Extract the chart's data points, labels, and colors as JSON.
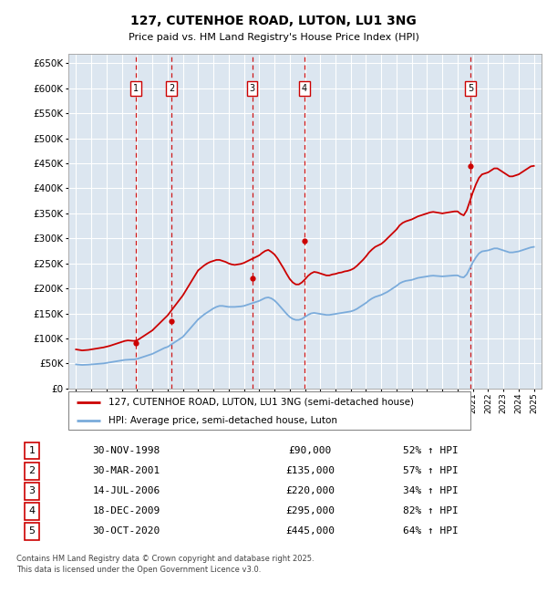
{
  "title": "127, CUTENHOE ROAD, LUTON, LU1 3NG",
  "subtitle": "Price paid vs. HM Land Registry's House Price Index (HPI)",
  "background_color": "#ffffff",
  "plot_bg_color": "#dce6f0",
  "grid_color": "#ffffff",
  "ylim": [
    0,
    670000
  ],
  "xlim_start": 1994.5,
  "xlim_end": 2025.5,
  "xtick_years": [
    1995,
    1996,
    1997,
    1998,
    1999,
    2000,
    2001,
    2002,
    2003,
    2004,
    2005,
    2006,
    2007,
    2008,
    2009,
    2010,
    2011,
    2012,
    2013,
    2014,
    2015,
    2016,
    2017,
    2018,
    2019,
    2020,
    2021,
    2022,
    2023,
    2024,
    2025
  ],
  "hpi_color": "#7aabdb",
  "price_color": "#cc0000",
  "sale_marker_color": "#cc0000",
  "vline_color": "#cc0000",
  "sale_points": [
    {
      "num": 1,
      "year": 1998.917,
      "price": 90000
    },
    {
      "num": 2,
      "year": 2001.25,
      "price": 135000
    },
    {
      "num": 3,
      "year": 2006.54,
      "price": 220000
    },
    {
      "num": 4,
      "year": 2009.96,
      "price": 295000
    },
    {
      "num": 5,
      "year": 2020.83,
      "price": 445000
    }
  ],
  "table_entries": [
    {
      "num": 1,
      "date": "30-NOV-1998",
      "price": "£90,000",
      "hpi": "52% ↑ HPI"
    },
    {
      "num": 2,
      "date": "30-MAR-2001",
      "price": "£135,000",
      "hpi": "57% ↑ HPI"
    },
    {
      "num": 3,
      "date": "14-JUL-2006",
      "price": "£220,000",
      "hpi": "34% ↑ HPI"
    },
    {
      "num": 4,
      "date": "18-DEC-2009",
      "price": "£295,000",
      "hpi": "82% ↑ HPI"
    },
    {
      "num": 5,
      "date": "30-OCT-2020",
      "price": "£445,000",
      "hpi": "64% ↑ HPI"
    }
  ],
  "legend_property_label": "127, CUTENHOE ROAD, LUTON, LU1 3NG (semi-detached house)",
  "legend_hpi_label": "HPI: Average price, semi-detached house, Luton",
  "footer": "Contains HM Land Registry data © Crown copyright and database right 2025.\nThis data is licensed under the Open Government Licence v3.0.",
  "hpi_data": [
    [
      1995.0,
      48000
    ],
    [
      1995.2,
      47500
    ],
    [
      1995.4,
      47000
    ],
    [
      1995.6,
      47200
    ],
    [
      1995.8,
      47500
    ],
    [
      1996.0,
      48000
    ],
    [
      1996.2,
      48500
    ],
    [
      1996.4,
      49000
    ],
    [
      1996.6,
      49500
    ],
    [
      1996.8,
      50000
    ],
    [
      1997.0,
      51000
    ],
    [
      1997.2,
      52000
    ],
    [
      1997.4,
      53000
    ],
    [
      1997.6,
      54000
    ],
    [
      1997.8,
      55000
    ],
    [
      1998.0,
      56000
    ],
    [
      1998.2,
      57000
    ],
    [
      1998.4,
      57500
    ],
    [
      1998.6,
      57800
    ],
    [
      1998.8,
      58000
    ],
    [
      1999.0,
      59000
    ],
    [
      1999.2,
      61000
    ],
    [
      1999.4,
      63000
    ],
    [
      1999.6,
      65000
    ],
    [
      1999.8,
      67000
    ],
    [
      2000.0,
      69000
    ],
    [
      2000.2,
      72000
    ],
    [
      2000.4,
      75000
    ],
    [
      2000.6,
      78000
    ],
    [
      2000.8,
      81000
    ],
    [
      2001.0,
      83000
    ],
    [
      2001.2,
      87000
    ],
    [
      2001.4,
      91000
    ],
    [
      2001.6,
      95000
    ],
    [
      2001.8,
      99000
    ],
    [
      2002.0,
      103000
    ],
    [
      2002.2,
      110000
    ],
    [
      2002.4,
      117000
    ],
    [
      2002.6,
      124000
    ],
    [
      2002.8,
      131000
    ],
    [
      2003.0,
      138000
    ],
    [
      2003.2,
      143000
    ],
    [
      2003.4,
      148000
    ],
    [
      2003.6,
      152000
    ],
    [
      2003.8,
      156000
    ],
    [
      2004.0,
      160000
    ],
    [
      2004.2,
      163000
    ],
    [
      2004.4,
      165000
    ],
    [
      2004.6,
      165000
    ],
    [
      2004.8,
      164000
    ],
    [
      2005.0,
      163000
    ],
    [
      2005.2,
      163000
    ],
    [
      2005.4,
      163000
    ],
    [
      2005.6,
      163500
    ],
    [
      2005.8,
      164000
    ],
    [
      2006.0,
      165000
    ],
    [
      2006.2,
      167000
    ],
    [
      2006.4,
      169000
    ],
    [
      2006.6,
      171000
    ],
    [
      2006.8,
      173000
    ],
    [
      2007.0,
      175000
    ],
    [
      2007.2,
      178000
    ],
    [
      2007.4,
      181000
    ],
    [
      2007.6,
      182000
    ],
    [
      2007.8,
      180000
    ],
    [
      2008.0,
      176000
    ],
    [
      2008.2,
      170000
    ],
    [
      2008.4,
      163000
    ],
    [
      2008.6,
      156000
    ],
    [
      2008.8,
      149000
    ],
    [
      2009.0,
      143000
    ],
    [
      2009.2,
      139000
    ],
    [
      2009.4,
      137000
    ],
    [
      2009.6,
      137000
    ],
    [
      2009.8,
      139000
    ],
    [
      2010.0,
      143000
    ],
    [
      2010.2,
      147000
    ],
    [
      2010.4,
      150000
    ],
    [
      2010.6,
      151000
    ],
    [
      2010.8,
      150000
    ],
    [
      2011.0,
      149000
    ],
    [
      2011.2,
      148000
    ],
    [
      2011.4,
      147000
    ],
    [
      2011.6,
      147000
    ],
    [
      2011.8,
      148000
    ],
    [
      2012.0,
      149000
    ],
    [
      2012.2,
      150000
    ],
    [
      2012.4,
      151000
    ],
    [
      2012.6,
      152000
    ],
    [
      2012.8,
      153000
    ],
    [
      2013.0,
      154000
    ],
    [
      2013.2,
      156000
    ],
    [
      2013.4,
      159000
    ],
    [
      2013.6,
      163000
    ],
    [
      2013.8,
      167000
    ],
    [
      2014.0,
      171000
    ],
    [
      2014.2,
      176000
    ],
    [
      2014.4,
      180000
    ],
    [
      2014.6,
      183000
    ],
    [
      2014.8,
      185000
    ],
    [
      2015.0,
      187000
    ],
    [
      2015.2,
      190000
    ],
    [
      2015.4,
      193000
    ],
    [
      2015.6,
      197000
    ],
    [
      2015.8,
      201000
    ],
    [
      2016.0,
      205000
    ],
    [
      2016.2,
      210000
    ],
    [
      2016.4,
      213000
    ],
    [
      2016.6,
      215000
    ],
    [
      2016.8,
      216000
    ],
    [
      2017.0,
      217000
    ],
    [
      2017.2,
      219000
    ],
    [
      2017.4,
      221000
    ],
    [
      2017.6,
      222000
    ],
    [
      2017.8,
      223000
    ],
    [
      2018.0,
      224000
    ],
    [
      2018.2,
      225000
    ],
    [
      2018.4,
      225500
    ],
    [
      2018.6,
      225000
    ],
    [
      2018.8,
      224500
    ],
    [
      2019.0,
      224000
    ],
    [
      2019.2,
      224500
    ],
    [
      2019.4,
      225000
    ],
    [
      2019.6,
      225500
    ],
    [
      2019.8,
      226000
    ],
    [
      2020.0,
      226000
    ],
    [
      2020.2,
      223000
    ],
    [
      2020.4,
      222000
    ],
    [
      2020.6,
      228000
    ],
    [
      2020.8,
      240000
    ],
    [
      2021.0,
      252000
    ],
    [
      2021.2,
      262000
    ],
    [
      2021.4,
      270000
    ],
    [
      2021.6,
      274000
    ],
    [
      2021.8,
      275000
    ],
    [
      2022.0,
      276000
    ],
    [
      2022.2,
      278000
    ],
    [
      2022.4,
      280000
    ],
    [
      2022.6,
      280000
    ],
    [
      2022.8,
      278000
    ],
    [
      2023.0,
      276000
    ],
    [
      2023.2,
      274000
    ],
    [
      2023.4,
      272000
    ],
    [
      2023.6,
      272000
    ],
    [
      2023.8,
      273000
    ],
    [
      2024.0,
      274000
    ],
    [
      2024.2,
      276000
    ],
    [
      2024.4,
      278000
    ],
    [
      2024.6,
      280000
    ],
    [
      2024.8,
      282000
    ],
    [
      2025.0,
      283000
    ]
  ],
  "property_hpi_data": [
    [
      1995.0,
      78000
    ],
    [
      1995.2,
      77000
    ],
    [
      1995.4,
      76000
    ],
    [
      1995.6,
      76500
    ],
    [
      1995.8,
      77000
    ],
    [
      1996.0,
      78000
    ],
    [
      1996.2,
      79000
    ],
    [
      1996.4,
      80000
    ],
    [
      1996.6,
      81000
    ],
    [
      1996.8,
      82000
    ],
    [
      1997.0,
      83500
    ],
    [
      1997.2,
      85000
    ],
    [
      1997.4,
      87000
    ],
    [
      1997.6,
      89000
    ],
    [
      1997.8,
      91000
    ],
    [
      1998.0,
      93000
    ],
    [
      1998.2,
      95000
    ],
    [
      1998.4,
      96000
    ],
    [
      1998.6,
      95500
    ],
    [
      1998.8,
      95000
    ],
    [
      1999.0,
      96000
    ],
    [
      1999.2,
      100000
    ],
    [
      1999.4,
      104000
    ],
    [
      1999.6,
      108000
    ],
    [
      1999.8,
      112000
    ],
    [
      2000.0,
      116000
    ],
    [
      2000.2,
      122000
    ],
    [
      2000.4,
      128000
    ],
    [
      2000.6,
      134000
    ],
    [
      2000.8,
      140000
    ],
    [
      2001.0,
      146000
    ],
    [
      2001.2,
      154000
    ],
    [
      2001.4,
      162000
    ],
    [
      2001.6,
      170000
    ],
    [
      2001.8,
      178000
    ],
    [
      2002.0,
      186000
    ],
    [
      2002.2,
      196000
    ],
    [
      2002.4,
      206000
    ],
    [
      2002.6,
      216000
    ],
    [
      2002.8,
      226000
    ],
    [
      2003.0,
      236000
    ],
    [
      2003.2,
      241000
    ],
    [
      2003.4,
      246000
    ],
    [
      2003.6,
      250000
    ],
    [
      2003.8,
      253000
    ],
    [
      2004.0,
      255000
    ],
    [
      2004.2,
      257000
    ],
    [
      2004.4,
      257000
    ],
    [
      2004.6,
      255000
    ],
    [
      2004.8,
      253000
    ],
    [
      2005.0,
      250000
    ],
    [
      2005.2,
      248000
    ],
    [
      2005.4,
      247000
    ],
    [
      2005.6,
      248000
    ],
    [
      2005.8,
      249000
    ],
    [
      2006.0,
      251000
    ],
    [
      2006.2,
      254000
    ],
    [
      2006.4,
      257000
    ],
    [
      2006.6,
      260000
    ],
    [
      2006.8,
      263000
    ],
    [
      2007.0,
      266000
    ],
    [
      2007.2,
      271000
    ],
    [
      2007.4,
      275000
    ],
    [
      2007.6,
      277000
    ],
    [
      2007.8,
      273000
    ],
    [
      2008.0,
      268000
    ],
    [
      2008.2,
      260000
    ],
    [
      2008.4,
      250000
    ],
    [
      2008.6,
      240000
    ],
    [
      2008.8,
      229000
    ],
    [
      2009.0,
      219000
    ],
    [
      2009.2,
      212000
    ],
    [
      2009.4,
      208000
    ],
    [
      2009.6,
      208000
    ],
    [
      2009.8,
      212000
    ],
    [
      2010.0,
      218000
    ],
    [
      2010.2,
      225000
    ],
    [
      2010.4,
      230000
    ],
    [
      2010.6,
      233000
    ],
    [
      2010.8,
      232000
    ],
    [
      2011.0,
      230000
    ],
    [
      2011.2,
      228000
    ],
    [
      2011.4,
      226000
    ],
    [
      2011.6,
      226000
    ],
    [
      2011.8,
      228000
    ],
    [
      2012.0,
      229000
    ],
    [
      2012.2,
      231000
    ],
    [
      2012.4,
      232000
    ],
    [
      2012.6,
      234000
    ],
    [
      2012.8,
      235000
    ],
    [
      2013.0,
      237000
    ],
    [
      2013.2,
      240000
    ],
    [
      2013.4,
      245000
    ],
    [
      2013.6,
      251000
    ],
    [
      2013.8,
      257000
    ],
    [
      2014.0,
      264000
    ],
    [
      2014.2,
      272000
    ],
    [
      2014.4,
      278000
    ],
    [
      2014.6,
      283000
    ],
    [
      2014.8,
      286000
    ],
    [
      2015.0,
      289000
    ],
    [
      2015.2,
      294000
    ],
    [
      2015.4,
      300000
    ],
    [
      2015.6,
      306000
    ],
    [
      2015.8,
      312000
    ],
    [
      2016.0,
      318000
    ],
    [
      2016.2,
      326000
    ],
    [
      2016.4,
      331000
    ],
    [
      2016.6,
      334000
    ],
    [
      2016.8,
      336000
    ],
    [
      2017.0,
      338000
    ],
    [
      2017.2,
      341000
    ],
    [
      2017.4,
      344000
    ],
    [
      2017.6,
      346000
    ],
    [
      2017.8,
      348000
    ],
    [
      2018.0,
      350000
    ],
    [
      2018.2,
      352000
    ],
    [
      2018.4,
      353000
    ],
    [
      2018.6,
      352000
    ],
    [
      2018.8,
      351000
    ],
    [
      2019.0,
      350000
    ],
    [
      2019.2,
      351000
    ],
    [
      2019.4,
      352000
    ],
    [
      2019.6,
      353000
    ],
    [
      2019.8,
      354000
    ],
    [
      2020.0,
      354000
    ],
    [
      2020.2,
      349000
    ],
    [
      2020.4,
      346000
    ],
    [
      2020.6,
      356000
    ],
    [
      2020.8,
      374000
    ],
    [
      2021.0,
      392000
    ],
    [
      2021.2,
      408000
    ],
    [
      2021.4,
      421000
    ],
    [
      2021.6,
      428000
    ],
    [
      2021.8,
      430000
    ],
    [
      2022.0,
      432000
    ],
    [
      2022.2,
      436000
    ],
    [
      2022.4,
      440000
    ],
    [
      2022.6,
      440000
    ],
    [
      2022.8,
      436000
    ],
    [
      2023.0,
      432000
    ],
    [
      2023.2,
      428000
    ],
    [
      2023.4,
      424000
    ],
    [
      2023.6,
      424000
    ],
    [
      2023.8,
      426000
    ],
    [
      2024.0,
      428000
    ],
    [
      2024.2,
      432000
    ],
    [
      2024.4,
      436000
    ],
    [
      2024.6,
      440000
    ],
    [
      2024.8,
      444000
    ],
    [
      2025.0,
      445000
    ]
  ]
}
